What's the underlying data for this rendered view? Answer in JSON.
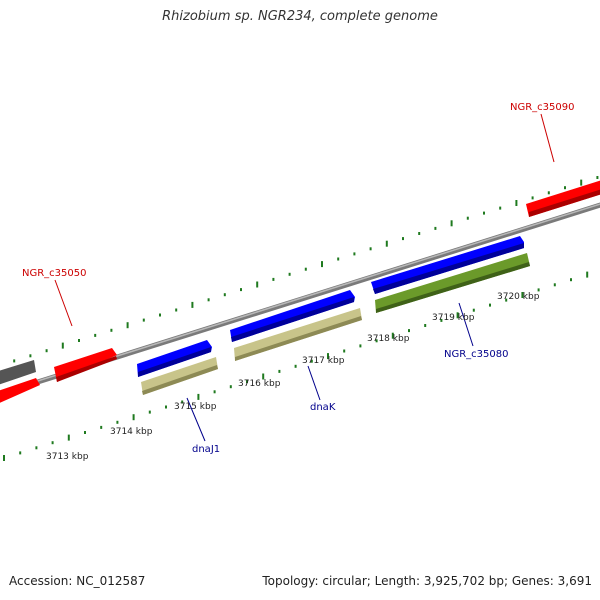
{
  "title": "Rhizobium sp. NGR234, complete genome",
  "footer": {
    "accession": "Accession: NC_012587",
    "summary": "Topology: circular; Length: 3,925,702 bp; Genes: 3,691"
  },
  "colors": {
    "backbone": "#888888",
    "tick": "#1f7a1f",
    "forward_cds": "#0000ff",
    "reverse_cds": "#ff0000",
    "gene_tan": "#c8c48a",
    "gene_olive": "#6b9a2a",
    "gene_grey": "#666666",
    "label_blue": "#00008b",
    "label_red": "#cc0000"
  },
  "scale_labels": [
    "3713 kbp",
    "3714 kbp",
    "3715 kbp",
    "3716 kbp",
    "3717 kbp",
    "3718 kbp",
    "3719 kbp",
    "3720 kbp"
  ],
  "gene_labels": [
    {
      "name": "NGR_c35090",
      "color": "red"
    },
    {
      "name": "NGR_c35050",
      "color": "red"
    },
    {
      "name": "NGR_c35080",
      "color": "blue"
    },
    {
      "name": "dnaK",
      "color": "blue"
    },
    {
      "name": "dnaJ1",
      "color": "blue"
    }
  ]
}
